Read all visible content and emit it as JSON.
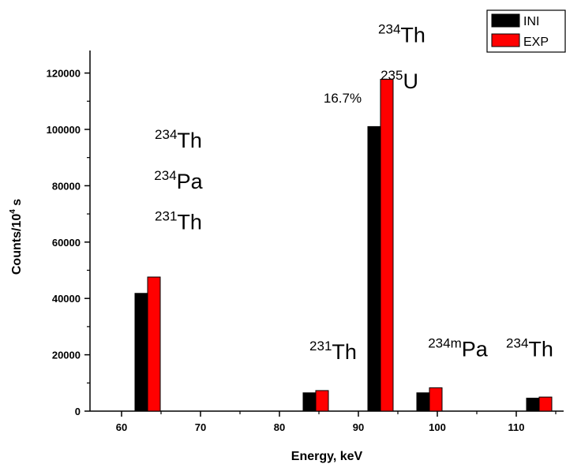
{
  "chart_data": {
    "type": "bar",
    "xlabel": "Energy, keV",
    "ylabel": "Counts/10",
    "ylabel_sup": "4",
    "ylabel_suffix": " s",
    "xlim": [
      56,
      116
    ],
    "ylim": [
      0,
      128000
    ],
    "xticks": [
      60,
      70,
      80,
      90,
      100,
      110
    ],
    "yticks": [
      0,
      20000,
      40000,
      60000,
      80000,
      100000,
      120000
    ],
    "legend_position": "top-right",
    "bar_width": 1.6,
    "series": [
      {
        "name": "INI",
        "color": "#000000",
        "points": [
          {
            "x": 62.5,
            "y": 41800
          },
          {
            "x": 83.8,
            "y": 6500
          },
          {
            "x": 92.0,
            "y": 101000
          },
          {
            "x": 98.2,
            "y": 6500
          },
          {
            "x": 112.1,
            "y": 4600
          }
        ]
      },
      {
        "name": "EXP",
        "color": "#ff0000",
        "points": [
          {
            "x": 64.1,
            "y": 47600
          },
          {
            "x": 85.4,
            "y": 7300
          },
          {
            "x": 93.6,
            "y": 117800
          },
          {
            "x": 99.8,
            "y": 8300
          },
          {
            "x": 113.7,
            "y": 5000
          }
        ]
      }
    ],
    "annotations": [
      {
        "mass": "234",
        "element": "Th",
        "x": 67.2,
        "y": 93500
      },
      {
        "mass": "234",
        "element": "Pa",
        "x": 67.2,
        "y": 79000
      },
      {
        "mass": "231",
        "element": "Th",
        "x": 67.2,
        "y": 64500
      },
      {
        "mass": "231",
        "element": "Th",
        "x": 86.8,
        "y": 18500
      },
      {
        "mass": "234",
        "element": "Th",
        "x": 95.5,
        "y": 131000
      },
      {
        "mass": "235",
        "element": "U",
        "x": 95.2,
        "y": 114500
      },
      {
        "mass": "234m",
        "element": "Pa",
        "x": 102.6,
        "y": 19500
      },
      {
        "mass": "234",
        "element": "Th",
        "x": 111.7,
        "y": 19500
      }
    ],
    "text_annotations": [
      {
        "text": "16.7%",
        "x": 88.0,
        "y": 109500
      }
    ]
  }
}
